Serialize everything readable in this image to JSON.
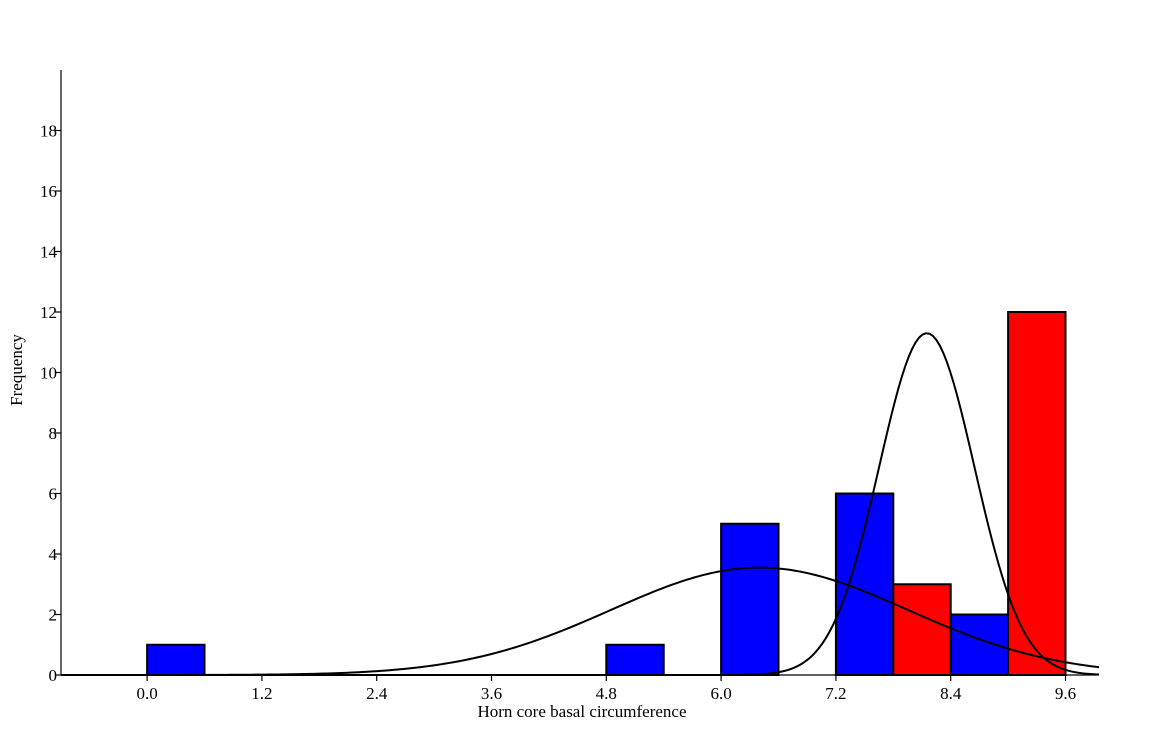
{
  "chart_data": {
    "type": "bar",
    "xlabel": "Horn core basal circumference",
    "ylabel": "Frequency",
    "xlim": [
      -0.9,
      9.95
    ],
    "ylim": [
      0,
      20
    ],
    "x_ticks": [
      "0.0",
      "1.2",
      "2.4",
      "3.6",
      "4.8",
      "6.0",
      "7.2",
      "8.4",
      "9.6"
    ],
    "y_ticks": [
      "0",
      "2",
      "4",
      "6",
      "8",
      "10",
      "12",
      "14",
      "16",
      "18"
    ],
    "grid": false,
    "series": [
      {
        "color": "#0000ff",
        "bars": [
          {
            "x0": 0.0,
            "x1": 0.6,
            "value": 1
          },
          {
            "x0": 4.8,
            "x1": 5.4,
            "value": 1
          },
          {
            "x0": 6.0,
            "x1": 6.6,
            "value": 5
          },
          {
            "x0": 7.2,
            "x1": 7.8,
            "value": 6
          },
          {
            "x0": 8.4,
            "x1": 9.0,
            "value": 2
          }
        ],
        "curve": {
          "mean": 6.4,
          "sd": 1.55,
          "peak": 3.55
        }
      },
      {
        "color": "#ff0000",
        "bars": [
          {
            "x0": 7.8,
            "x1": 8.4,
            "value": 3
          },
          {
            "x0": 9.0,
            "x1": 9.6,
            "value": 12
          }
        ],
        "curve": {
          "mean": 8.15,
          "sd": 0.5,
          "peak": 11.3
        }
      }
    ]
  }
}
